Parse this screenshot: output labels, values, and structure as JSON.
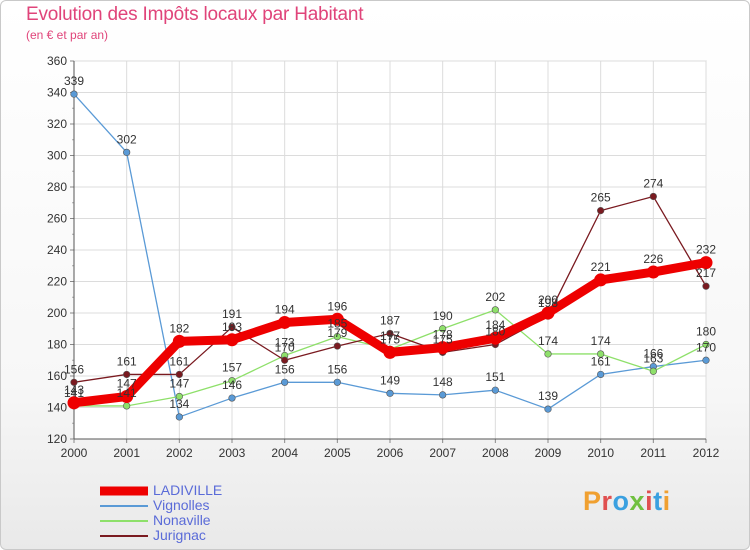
{
  "title": "Evolution des Impôts locaux par Habitant",
  "subtitle": "(en € et par an)",
  "logo": {
    "text": "Proxiti",
    "colors": [
      "#f0a030",
      "#e05050",
      "#3aa0e0",
      "#70c040",
      "#e05050",
      "#3aa0e0",
      "#f0a030"
    ]
  },
  "chart_data": {
    "type": "line",
    "x": [
      "2000",
      "2001",
      "2002",
      "2003",
      "2004",
      "2005",
      "2006",
      "2007",
      "2008",
      "2009",
      "2010",
      "2011",
      "2012"
    ],
    "ylim": [
      120,
      360
    ],
    "yticks": [
      120,
      140,
      160,
      180,
      200,
      220,
      240,
      260,
      280,
      300,
      320,
      340,
      360
    ],
    "grid": true,
    "legend_position": "bottom-left",
    "series": [
      {
        "name": "LADIVILLE",
        "color": "#ee0000",
        "values": [
          143,
          147,
          182,
          183,
          194,
          196,
          175,
          178,
          184,
          200,
          221,
          226,
          232
        ],
        "labels": [
          "143",
          "147",
          "182",
          "183",
          "194",
          "196",
          "175",
          "178",
          "184",
          "200",
          "221",
          "226",
          "232"
        ]
      },
      {
        "name": "Vignolles",
        "color": "#5a9ad6",
        "values": [
          339,
          302,
          134,
          146,
          156,
          156,
          149,
          148,
          151,
          139,
          161,
          166,
          170
        ],
        "labels": [
          "339",
          "302",
          "134",
          "146",
          "156",
          "156",
          "149",
          "148",
          "151",
          "139",
          "161",
          "166",
          "170"
        ]
      },
      {
        "name": "Nonaville",
        "color": "#8ee06a",
        "values": [
          141,
          141,
          147,
          157,
          173,
          185,
          177,
          190,
          202,
          174,
          174,
          163,
          180
        ],
        "labels": [
          "141",
          "141",
          "147",
          "157",
          "173",
          "185",
          "177",
          "190",
          "202",
          "174",
          "174",
          "163",
          "180"
        ]
      },
      {
        "name": "Jurignac",
        "color": "#7a1a20",
        "values": [
          156,
          161,
          161,
          191,
          170,
          179,
          187,
          175,
          180,
          198,
          265,
          274,
          217
        ],
        "labels": [
          "156",
          "161",
          "161",
          "191",
          "170",
          "179",
          "187",
          "175",
          "180",
          "198",
          "265",
          "274",
          "217"
        ]
      }
    ]
  }
}
